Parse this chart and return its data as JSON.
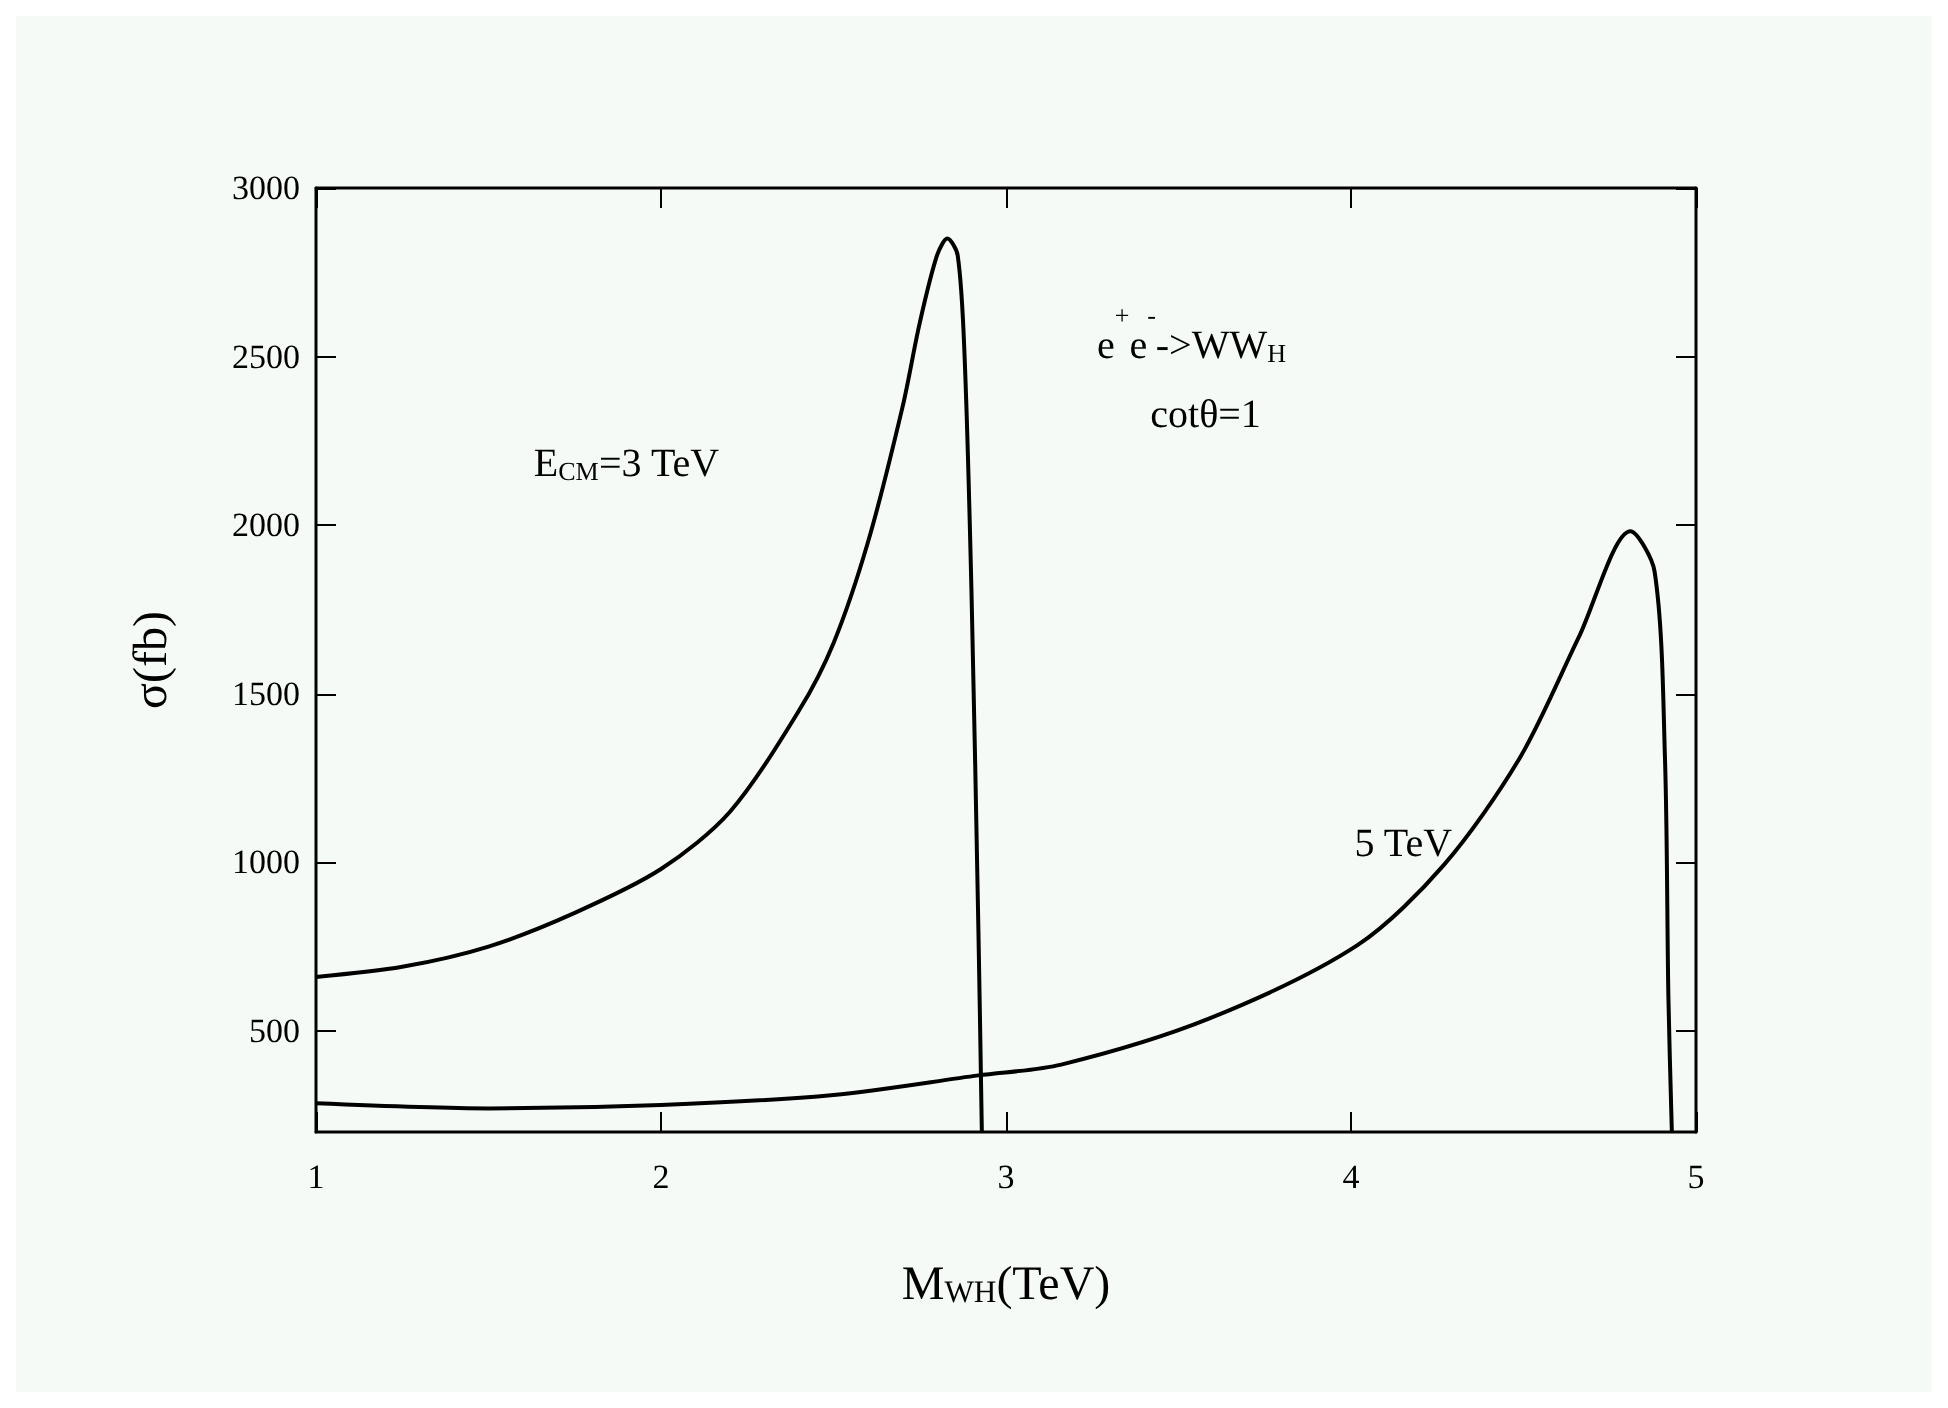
{
  "chart_data": {
    "type": "line",
    "xlabel": "M$_{WH}$(TeV)",
    "ylabel": "σ(fb)",
    "series": [
      {
        "color": "#000000",
        "x": [
          1,
          1.25,
          1.5,
          1.75,
          2,
          2.2,
          2.4,
          2.5,
          2.6,
          2.7,
          2.75,
          2.8,
          2.83,
          2.86,
          2.88,
          2.9,
          2.92,
          2.93
        ],
        "values": [
          660,
          690,
          750,
          850,
          980,
          1150,
          1450,
          1650,
          1950,
          2350,
          2600,
          2800,
          2850,
          2800,
          2500,
          1800,
          800,
          200
        ]
      },
      {
        "color": "#000000",
        "x": [
          1,
          1.5,
          2,
          2.5,
          2.92,
          3.16,
          3.59,
          4.02,
          4.27,
          4.49,
          4.66,
          4.81,
          4.88,
          4.91,
          4.92,
          4.93
        ],
        "values": [
          285,
          270,
          280,
          310,
          368,
          400,
          537,
          755,
          993,
          1311,
          1667,
          1982,
          1862,
          1311,
          600,
          200
        ]
      }
    ],
    "annotations": [
      "E$_{CM}$=3 TeV",
      "5 TeV",
      "e$^{+}$e$^{-}$->WW$_{H}$",
      "cotθ=1"
    ],
    "xlim": [
      1,
      5
    ],
    "ylim": [
      200,
      3000
    ],
    "xticks": [
      1,
      2,
      3,
      4,
      5
    ],
    "yticks": [
      500,
      1000,
      1500,
      2000,
      2500,
      3000
    ],
    "grid": false,
    "marker": "none",
    "line_style": "solid"
  }
}
